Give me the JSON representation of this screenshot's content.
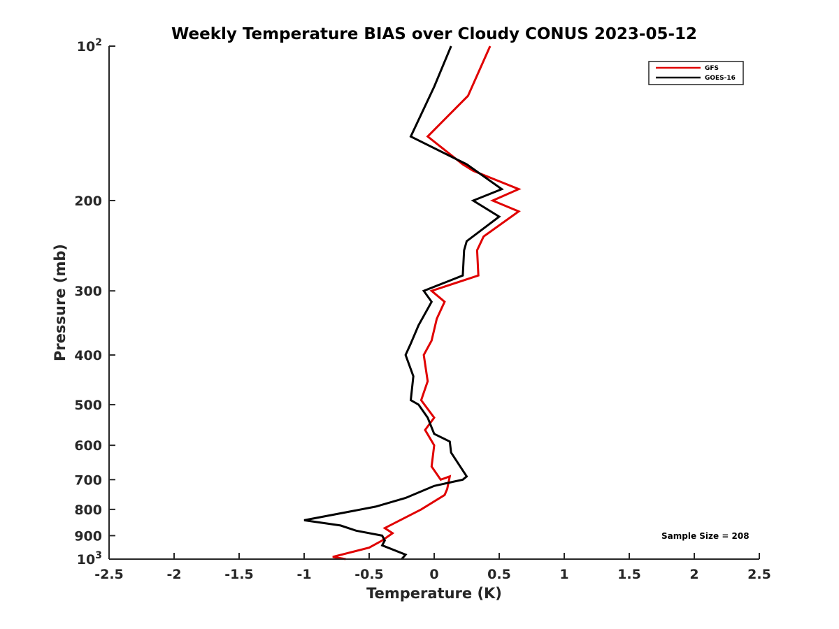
{
  "chart_data": {
    "type": "line",
    "title": "Weekly Temperature BIAS over Cloudy CONUS 2023-05-12",
    "xlabel": "Temperature (K)",
    "ylabel": "Pressure (mb)",
    "xlim": [
      -2.5,
      2.5
    ],
    "ylim": [
      100,
      1000
    ],
    "y_scale": "log",
    "y_reversed": true,
    "x_ticks": [
      "-2.5",
      "-2",
      "-1.5",
      "-1",
      "-0.5",
      "0",
      "0.5",
      "1",
      "1.5",
      "2",
      "2.5"
    ],
    "x_tick_values": [
      -2.5,
      -2,
      -1.5,
      -1,
      -0.5,
      0,
      0.5,
      1,
      1.5,
      2,
      2.5
    ],
    "y_ticks": [
      {
        "value": 100,
        "base": "10",
        "exp": "2"
      },
      {
        "value": 200,
        "label": "200"
      },
      {
        "value": 300,
        "label": "300"
      },
      {
        "value": 400,
        "label": "400"
      },
      {
        "value": 500,
        "label": "500"
      },
      {
        "value": 600,
        "label": "600"
      },
      {
        "value": 700,
        "label": "700"
      },
      {
        "value": 800,
        "label": "800"
      },
      {
        "value": 900,
        "label": "900"
      },
      {
        "value": 1000,
        "base": "10",
        "exp": "3"
      }
    ],
    "grid": false,
    "legend_position": "top-right",
    "annotation": "Sample Size = 208",
    "series": [
      {
        "name": "GFS",
        "color": "#e00000",
        "points": [
          [
            0.43,
            100
          ],
          [
            0.26,
            125
          ],
          [
            -0.05,
            150
          ],
          [
            0.22,
            170
          ],
          [
            0.3,
            175
          ],
          [
            0.65,
            190
          ],
          [
            0.45,
            200
          ],
          [
            0.65,
            210
          ],
          [
            0.38,
            235
          ],
          [
            0.33,
            250
          ],
          [
            0.34,
            280
          ],
          [
            -0.02,
            300
          ],
          [
            0.08,
            315
          ],
          [
            0.02,
            340
          ],
          [
            -0.02,
            375
          ],
          [
            -0.08,
            400
          ],
          [
            -0.05,
            450
          ],
          [
            -0.1,
            490
          ],
          [
            0.0,
            530
          ],
          [
            -0.07,
            560
          ],
          [
            0.0,
            600
          ],
          [
            -0.02,
            660
          ],
          [
            0.05,
            700
          ],
          [
            0.12,
            690
          ],
          [
            0.1,
            730
          ],
          [
            0.08,
            750
          ],
          [
            -0.1,
            800
          ],
          [
            -0.38,
            870
          ],
          [
            -0.32,
            890
          ],
          [
            -0.4,
            920
          ],
          [
            -0.5,
            950
          ],
          [
            -0.78,
            990
          ],
          [
            -0.68,
            1000
          ]
        ]
      },
      {
        "name": "GOES-16",
        "color": "#000000",
        "points": [
          [
            0.13,
            100
          ],
          [
            0.0,
            120
          ],
          [
            -0.18,
            150
          ],
          [
            0.25,
            170
          ],
          [
            0.52,
            190
          ],
          [
            0.3,
            200
          ],
          [
            0.5,
            215
          ],
          [
            0.25,
            240
          ],
          [
            0.23,
            250
          ],
          [
            0.22,
            280
          ],
          [
            -0.08,
            300
          ],
          [
            -0.02,
            315
          ],
          [
            -0.12,
            350
          ],
          [
            -0.18,
            380
          ],
          [
            -0.22,
            400
          ],
          [
            -0.16,
            440
          ],
          [
            -0.18,
            490
          ],
          [
            -0.12,
            500
          ],
          [
            -0.05,
            530
          ],
          [
            0.0,
            570
          ],
          [
            0.12,
            590
          ],
          [
            0.13,
            620
          ],
          [
            0.25,
            690
          ],
          [
            0.22,
            700
          ],
          [
            0.0,
            720
          ],
          [
            -0.22,
            760
          ],
          [
            -0.45,
            790
          ],
          [
            -1.0,
            840
          ],
          [
            -0.72,
            860
          ],
          [
            -0.6,
            880
          ],
          [
            -0.4,
            900
          ],
          [
            -0.38,
            920
          ],
          [
            -0.4,
            940
          ],
          [
            -0.22,
            980
          ],
          [
            -0.25,
            1000
          ]
        ]
      }
    ]
  }
}
